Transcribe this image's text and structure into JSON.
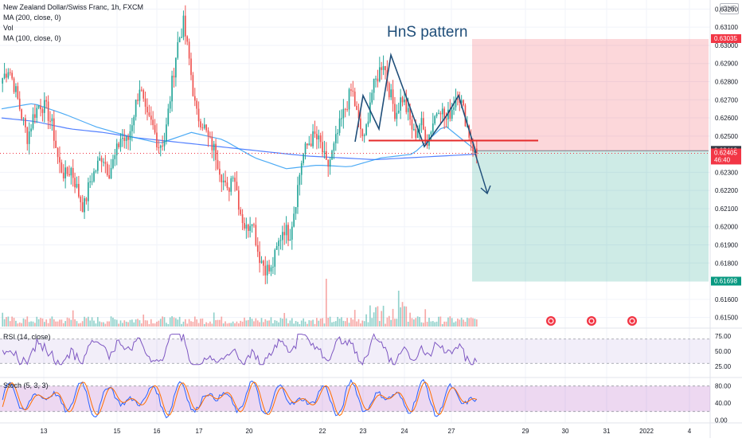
{
  "header": {
    "symbol_line": "New Zealand Dollar/Swiss Franc, 1h, FXCM",
    "ma200_line": "MA (200, close, 0)",
    "vol_line": "Vol",
    "ma100_line": "MA (100, close, 0)",
    "currency": "CHF"
  },
  "annotation": {
    "pattern_label": "HnS pattern"
  },
  "price_axis": {
    "ticks": [
      "0.63200",
      "0.63100",
      "0.63000",
      "0.62900",
      "0.62800",
      "0.62700",
      "0.62600",
      "0.62500",
      "0.62300",
      "0.62200",
      "0.62100",
      "0.62000",
      "0.61900",
      "0.61800",
      "0.61600",
      "0.61500"
    ],
    "tick_values": [
      0.632,
      0.631,
      0.63,
      0.629,
      0.628,
      0.627,
      0.626,
      0.625,
      0.623,
      0.622,
      0.621,
      0.62,
      0.619,
      0.618,
      0.616,
      0.615
    ],
    "badges": [
      {
        "label": "0.63035",
        "value": 0.63035,
        "color": "#f23645"
      },
      {
        "label": "0.62419",
        "value": 0.62419,
        "color": "#363a45"
      },
      {
        "label": "0.62405",
        "sub": "46:40",
        "value": 0.62405,
        "color": "#f23645"
      },
      {
        "label": "0.61698",
        "value": 0.61698,
        "color": "#089981"
      }
    ]
  },
  "rsi": {
    "label": "RSI (14, close)",
    "ticks": [
      "75.00",
      "50.00",
      "25.00"
    ],
    "tick_values": [
      75,
      50,
      25
    ],
    "color": "#7e57c2"
  },
  "stoch": {
    "label": "Stoch (5, 3, 3)",
    "ticks": [
      "80.00",
      "40.00",
      "0.00"
    ],
    "tick_values": [
      80,
      40,
      0
    ],
    "k_color": "#2962ff",
    "d_color": "#ff6d00"
  },
  "time_axis": {
    "labels": [
      "13",
      "15",
      "16",
      "17",
      "20",
      "22",
      "23",
      "24",
      "27",
      "29",
      "30",
      "31",
      "2022",
      "4"
    ]
  },
  "chart_data": {
    "type": "candlestick",
    "ylim": [
      0.6145,
      0.6325
    ],
    "candles_count": 250,
    "last_close": 0.62405,
    "position": {
      "side": "short",
      "entry": 0.62419,
      "stop": 0.63035,
      "target": 0.61698,
      "stop_color": "#f23645",
      "target_color": "#089981"
    },
    "neckline": 0.62475,
    "up_color": "#26a69a",
    "down_color": "#ef5350",
    "ma_color": "#2962ff",
    "price_path": [
      0.6282,
      0.6288,
      0.6276,
      0.6262,
      0.6249,
      0.6262,
      0.6268,
      0.6265,
      0.6255,
      0.6235,
      0.6228,
      0.6232,
      0.622,
      0.621,
      0.6225,
      0.6232,
      0.624,
      0.623,
      0.6238,
      0.625,
      0.6246,
      0.6262,
      0.6278,
      0.626,
      0.6256,
      0.6245,
      0.6248,
      0.6275,
      0.63,
      0.6312,
      0.629,
      0.6262,
      0.6258,
      0.6248,
      0.6242,
      0.623,
      0.6218,
      0.6232,
      0.621,
      0.6198,
      0.6206,
      0.6185,
      0.6178,
      0.6175,
      0.6188,
      0.62,
      0.6195,
      0.6215,
      0.6238,
      0.6246,
      0.625,
      0.6245,
      0.6232,
      0.6242,
      0.6255,
      0.6266,
      0.6276,
      0.6258,
      0.6247,
      0.6272,
      0.6282,
      0.6292,
      0.6275,
      0.6262,
      0.6272,
      0.6262,
      0.625,
      0.6258,
      0.6247,
      0.6258,
      0.6268,
      0.6258,
      0.6265,
      0.6275,
      0.6262,
      0.6248,
      0.6238
    ],
    "ma200_path": [
      0.626,
      0.6258,
      0.6254,
      0.6252,
      0.6249,
      0.6247,
      0.6245,
      0.6243,
      0.6241,
      0.6239,
      0.6238,
      0.6237,
      0.6238,
      0.6239,
      0.624
    ],
    "ma100_path": [
      0.6265,
      0.6268,
      0.6262,
      0.6255,
      0.625,
      0.6246,
      0.6252,
      0.6248,
      0.6238,
      0.6232,
      0.6234,
      0.6233,
      0.6238,
      0.624,
      0.6256,
      0.6242
    ]
  }
}
